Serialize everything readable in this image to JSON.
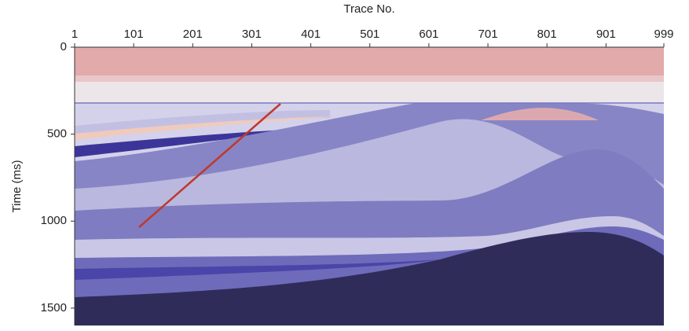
{
  "chart_data": {
    "type": "section",
    "xlabel": "Trace No.",
    "ylabel": "Time (ms)",
    "xlim": [
      1,
      999
    ],
    "xticks": [
      1,
      101,
      201,
      301,
      401,
      501,
      601,
      701,
      801,
      901,
      999
    ],
    "ylim": [
      0,
      1600
    ],
    "yticks": [
      0,
      500,
      1000,
      1500
    ]
  }
}
